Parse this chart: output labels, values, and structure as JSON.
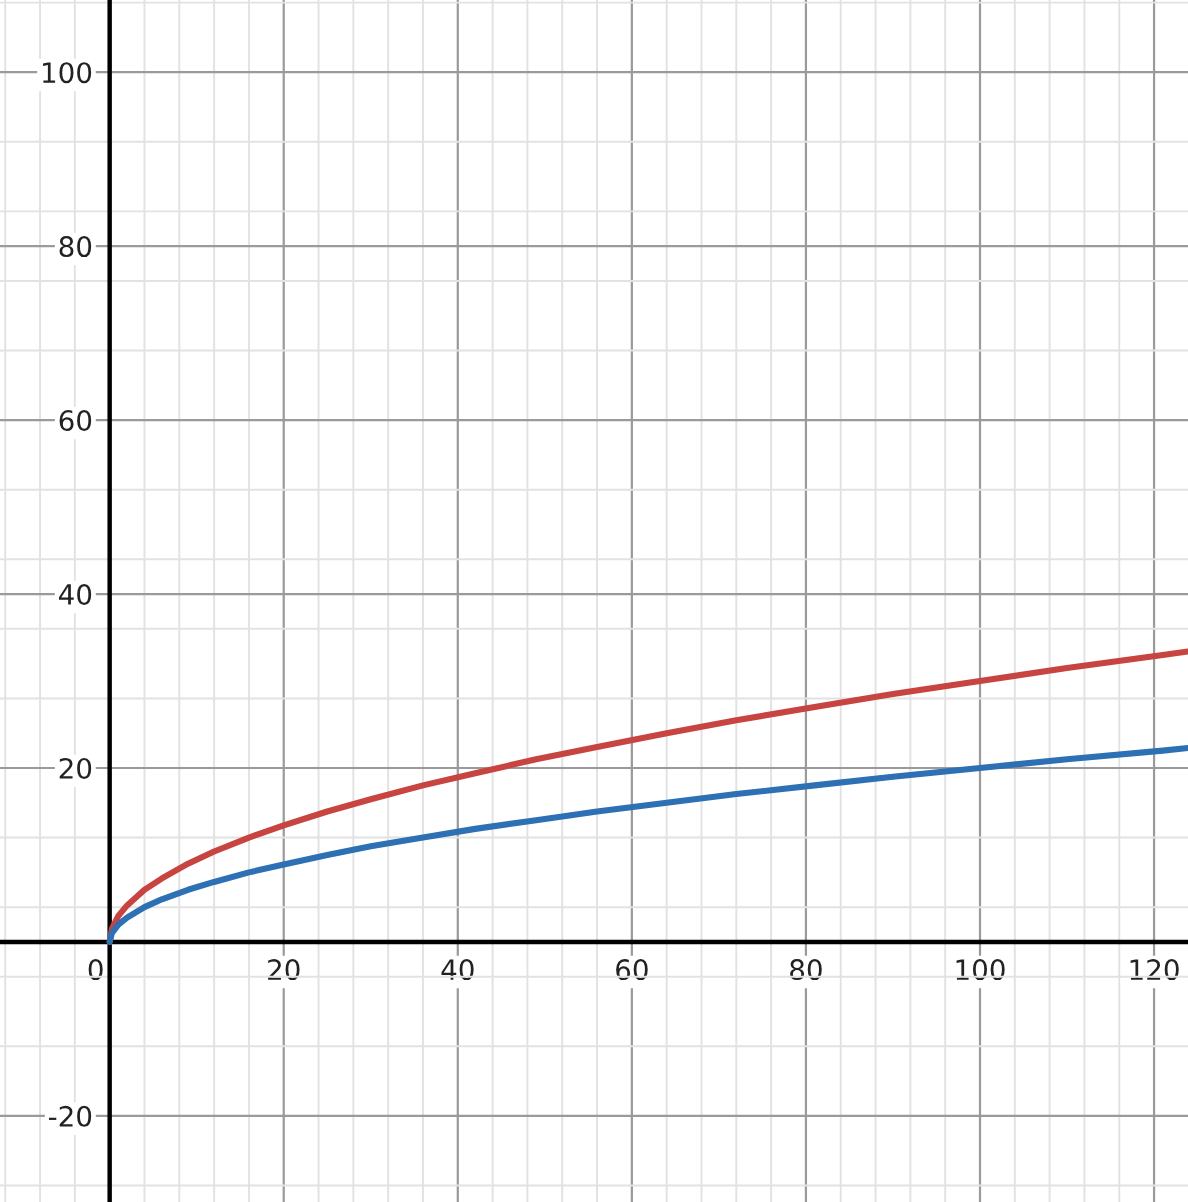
{
  "chart_data": {
    "type": "line",
    "xlim": [
      -12.6,
      123.9
    ],
    "ylim": [
      -29.9,
      108.3
    ],
    "xticks": [
      0,
      20,
      40,
      60,
      80,
      100,
      120
    ],
    "yticks": [
      -20,
      20,
      40,
      60,
      80,
      100
    ],
    "grid": true,
    "marker": "none",
    "line_style": "solid",
    "series": [
      {
        "color": "#c74440",
        "x": [
          0,
          0.25,
          1,
          2,
          4,
          6,
          9,
          12,
          16,
          20,
          25,
          30,
          36,
          42,
          49,
          56,
          64,
          72,
          81,
          90,
          100,
          110,
          121,
          123.9
        ],
        "values": [
          0,
          1.5,
          3,
          4.2,
          6,
          7.3,
          9,
          10.4,
          12,
          13.4,
          15,
          16.4,
          18,
          19.4,
          21,
          22.4,
          24,
          25.5,
          27,
          28.5,
          30,
          31.5,
          33,
          33.4
        ]
      },
      {
        "color": "#2d70b3",
        "x": [
          0,
          0.25,
          1,
          2,
          4,
          6,
          9,
          12,
          16,
          20,
          25,
          30,
          36,
          42,
          49,
          56,
          64,
          72,
          81,
          90,
          100,
          110,
          121,
          123.9
        ],
        "values": [
          0,
          1,
          2,
          2.8,
          4,
          4.9,
          6,
          6.9,
          8,
          8.9,
          10,
          11,
          12,
          13,
          14,
          15,
          16,
          17,
          18,
          19,
          20,
          21,
          22,
          22.3
        ]
      }
    ]
  }
}
